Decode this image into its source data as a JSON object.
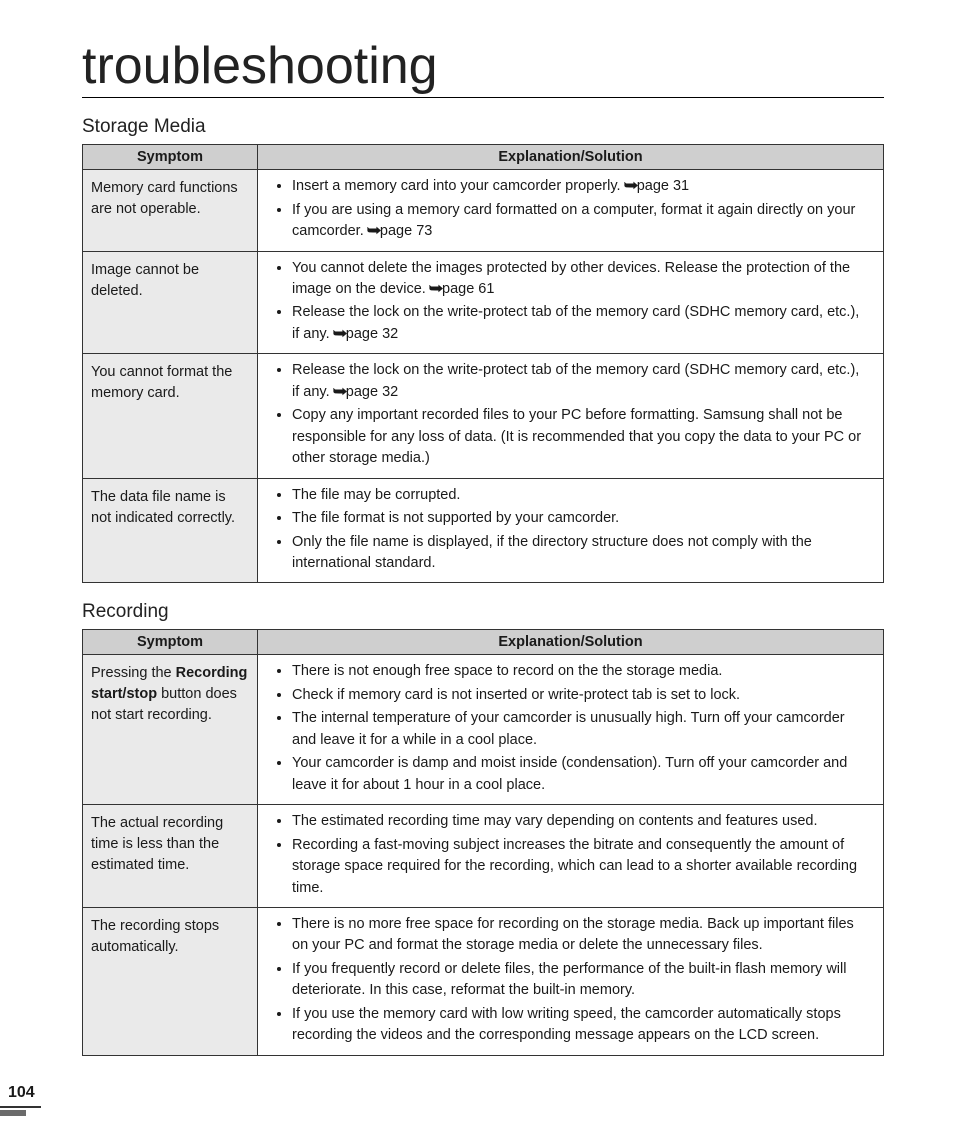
{
  "page_title": "troubleshooting",
  "page_number": "104",
  "sections": [
    {
      "heading": "Storage Media",
      "columns": {
        "symptom": "Symptom",
        "solution": "Explanation/Solution"
      },
      "rows": [
        {
          "symptom": "Memory card functions are not operable.",
          "items": [
            {
              "text": "Insert a memory card into your camcorder properly. ",
              "ref": "page 31"
            },
            {
              "text": "If you are using a memory card formatted on a computer, format it again directly on your camcorder. ",
              "ref": "page 73"
            }
          ]
        },
        {
          "symptom": "Image cannot be deleted.",
          "items": [
            {
              "text": "You cannot delete the images protected by other devices. Release the protection of the image on the device. ",
              "ref": "page 61"
            },
            {
              "text": "Release the lock on the write-protect tab of the memory card (SDHC memory card, etc.), if any. ",
              "ref": "page 32"
            }
          ]
        },
        {
          "symptom": "You cannot format the memory card.",
          "items": [
            {
              "text": "Release the lock on the write-protect tab of the memory card (SDHC memory card, etc.), if any. ",
              "ref": "page 32"
            },
            {
              "text": "Copy any important recorded files to your PC before formatting. Samsung shall not be responsible for any loss of data. (It is recommended that you copy the data to your PC or other storage media.)"
            }
          ]
        },
        {
          "symptom": "The data file name is not indicated correctly.",
          "items": [
            {
              "text": "The file may be corrupted."
            },
            {
              "text": "The file format is not supported by your camcorder."
            },
            {
              "text": "Only the file name is displayed, if the directory structure does not comply with the international standard."
            }
          ]
        }
      ]
    },
    {
      "heading": "Recording",
      "columns": {
        "symptom": "Symptom",
        "solution": "Explanation/Solution"
      },
      "rows": [
        {
          "symptom_parts": [
            {
              "text": "Pressing the "
            },
            {
              "text": "Recording start/stop",
              "bold": true
            },
            {
              "text": " button does not start recording."
            }
          ],
          "items": [
            {
              "text": "There is not enough free space to record on the the storage media."
            },
            {
              "text": "Check if memory card is not inserted or write-protect tab is set to lock."
            },
            {
              "text": "The internal temperature of your camcorder is unusually high. Turn off your camcorder and leave it for a while in a cool place."
            },
            {
              "text": "Your camcorder is damp and moist inside (condensation). Turn off your camcorder and leave it for about 1 hour in a cool place."
            }
          ]
        },
        {
          "symptom": "The actual recording time is less than the estimated time.",
          "items": [
            {
              "text": "The estimated recording time may vary depending on contents and features used."
            },
            {
              "text": "Recording a fast-moving subject increases the bitrate and consequently the amount of storage space required for the recording, which can lead to a shorter available recording time."
            }
          ]
        },
        {
          "symptom": "The recording stops automatically.",
          "items": [
            {
              "text": "There is no more free space for recording on the storage media. Back up important files on your PC and format the storage media or delete the unnecessary files."
            },
            {
              "text": "If you frequently record or delete files, the performance of the built-in flash memory will deteriorate. In this case, reformat the built-in memory."
            },
            {
              "text": "If you use the memory card with low writing speed, the camcorder automatically stops recording the videos and the corresponding message appears on the LCD screen."
            }
          ]
        }
      ]
    }
  ],
  "arrow_glyph": "➥",
  "colors": {
    "header_bg": "#cfcfcf",
    "symptom_bg": "#eaeaea",
    "border": "#333333",
    "page_bar": "#6b6b6b"
  }
}
